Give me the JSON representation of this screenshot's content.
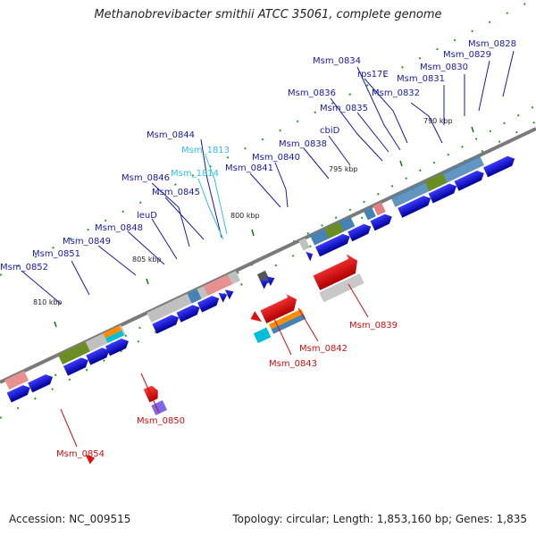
{
  "title": "Methanobrevibacter smithii ATCC 35061, complete genome",
  "footer": {
    "accession": "Accession: NC_009515",
    "topology": "Topology: circular; Length: 1,853,160 bp; Genes: 1,835"
  },
  "colors": {
    "forward_gene": "#0a0ad0",
    "reverse_gene": "#e01010",
    "label_blue": "#1a1aa0",
    "label_cyan": "#30c0e0",
    "label_red": "#cc1010",
    "backbone": "#808080"
  },
  "scale_ticks": [
    "790 kbp",
    "795 kbp",
    "800 kbp",
    "805 kbp",
    "810 kbp"
  ],
  "forward_labels": [
    "Msm_0828",
    "Msm_0829",
    "Msm_0830",
    "Msm_0831",
    "Msm_0832",
    "rps17E",
    "Msm_0834",
    "Msm_0835",
    "Msm_0836",
    "cbiD",
    "Msm_0838",
    "Msm_0840",
    "Msm_0841",
    "Msm_0844",
    "Msm_1813",
    "Msm_1814",
    "Msm_0845",
    "Msm_0846",
    "leuD",
    "Msm_0848",
    "Msm_0849",
    "Msm_0851",
    "Msm_0852"
  ],
  "reverse_labels": [
    "Msm_0839",
    "Msm_0842",
    "Msm_0843",
    "Msm_0850",
    "Msm_0854"
  ]
}
